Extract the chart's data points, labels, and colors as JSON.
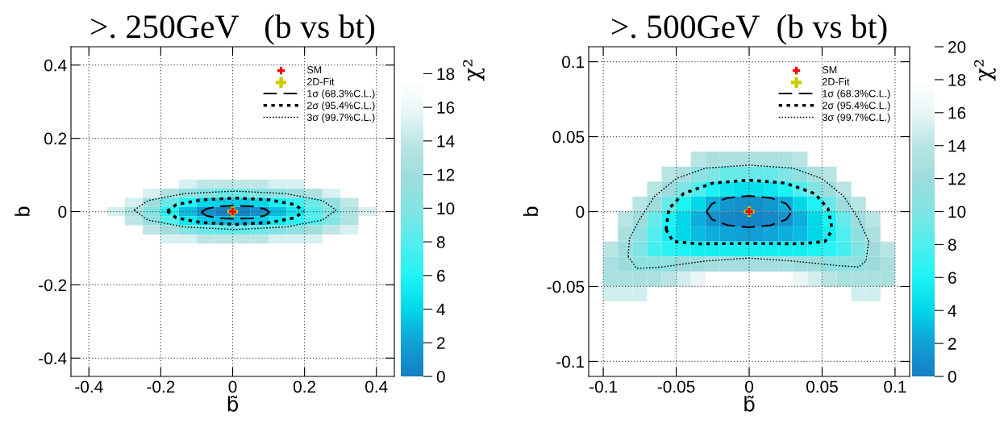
{
  "chart_data": [
    {
      "type": "heatmap",
      "title": ">. 250GeV   (b vs bt)",
      "xlabel": "b̃",
      "ylabel": "b",
      "clabel": "χ²",
      "xlim": [
        -0.45,
        0.45
      ],
      "ylim": [
        -0.45,
        0.45
      ],
      "xticks": [
        -0.4,
        -0.2,
        0,
        0.2,
        0.4
      ],
      "yticks": [
        -0.4,
        -0.2,
        0,
        0.2,
        0.4
      ],
      "clim": [
        0,
        19.6
      ],
      "cticks": [
        0,
        2,
        4,
        6,
        8,
        10,
        12,
        14,
        16,
        18
      ],
      "colors": [
        "#1580c4",
        "#10a0d6",
        "#00d8ea",
        "#1ef4f4",
        "#50eeee",
        "#80e4e4",
        "#9edcdc",
        "#b8e4e4",
        "#e8f6f6",
        "#ffffff",
        "#ffffff"
      ],
      "grid": true,
      "legend": "top right",
      "x": [
        -0.375,
        -0.325,
        -0.275,
        -0.225,
        -0.175,
        -0.125,
        -0.075,
        -0.025,
        0.025,
        0.075,
        0.125,
        0.175,
        0.225,
        0.275,
        0.325,
        0.375
      ],
      "y": [
        0.075,
        0.05,
        0.025,
        0,
        -0.025,
        -0.05,
        -0.075
      ],
      "cells": [
        [
          null,
          null,
          null,
          null,
          null,
          15,
          14,
          14,
          14,
          14,
          15,
          15,
          null,
          null,
          null,
          null
        ],
        [
          null,
          null,
          null,
          15,
          13,
          11,
          10,
          9,
          9,
          10,
          11,
          12,
          13,
          15,
          null,
          null
        ],
        [
          null,
          null,
          15,
          12,
          9,
          6,
          4,
          3.5,
          3.5,
          4,
          5.5,
          7,
          9,
          11,
          14,
          null
        ],
        [
          null,
          15,
          13,
          10,
          6,
          3,
          1.2,
          0.3,
          0.3,
          1.2,
          3,
          5,
          8,
          10,
          13,
          15
        ],
        [
          null,
          null,
          14,
          11,
          8,
          5,
          3.5,
          3,
          3,
          3.5,
          5,
          6.5,
          8,
          10,
          13,
          null
        ],
        [
          null,
          null,
          null,
          14,
          12,
          10,
          9,
          8.5,
          8.5,
          9,
          10,
          11,
          12,
          14,
          15,
          null
        ],
        [
          null,
          null,
          null,
          null,
          15,
          15,
          14,
          14,
          14,
          14,
          15,
          15,
          15,
          null,
          null,
          null
        ]
      ],
      "series": [
        {
          "name": "SM",
          "type": "scatter",
          "color": "#ff0000",
          "marker": "cross",
          "x": [
            0
          ],
          "values": [
            0
          ]
        },
        {
          "name": "2D-Fit",
          "type": "scatter",
          "color": "#cccc00",
          "marker": "cross",
          "x": [
            0
          ],
          "values": [
            0
          ]
        },
        {
          "name": "1σ (68.3%C.L.)",
          "type": "line",
          "color": "#000000",
          "line_style": "dashed",
          "x": [
            -0.087,
            -0.074,
            -0.04,
            0.008,
            0.056,
            0.09,
            0.103
          ],
          "values": [
            -0.002,
            0.007,
            0.014,
            0.016,
            0.014,
            0.007,
            -0.002
          ]
        },
        {
          "type": "line",
          "color": "#000000",
          "line_style": "dashed",
          "x": [
            -0.087,
            -0.074,
            -0.04,
            0.008,
            0.056,
            0.09,
            0.103
          ],
          "values": [
            -0.002,
            -0.011,
            -0.018,
            -0.02,
            -0.018,
            -0.011,
            -0.002
          ]
        },
        {
          "name": "2σ (95.4%C.L.)",
          "type": "line",
          "color": "#000000",
          "line_style": "dotted",
          "x": [
            -0.182,
            -0.157,
            -0.087,
            0.008,
            0.103,
            0.173,
            0.198
          ],
          "values": [
            0.001,
            0.019,
            0.032,
            0.037,
            0.032,
            0.019,
            0.001
          ]
        },
        {
          "type": "line",
          "color": "#000000",
          "line_style": "dotted",
          "x": [
            -0.182,
            -0.157,
            -0.087,
            0.008,
            0.103,
            0.173,
            0.198
          ],
          "values": [
            0.001,
            -0.017,
            -0.03,
            -0.035,
            -0.03,
            -0.017,
            0.001
          ]
        },
        {
          "name": "3σ (99.7%C.L.)",
          "type": "line",
          "color": "#000000",
          "line_style": "dotted",
          "x": [
            -0.274,
            -0.236,
            -0.134,
            0.007,
            0.148,
            0.25,
            0.288
          ],
          "values": [
            0.004,
            0.03,
            0.049,
            0.056,
            0.049,
            0.03,
            0.004
          ]
        },
        {
          "type": "line",
          "color": "#000000",
          "line_style": "dotted",
          "x": [
            -0.274,
            -0.236,
            -0.134,
            0.007,
            0.148,
            0.25,
            0.288
          ],
          "values": [
            0.004,
            -0.023,
            -0.042,
            -0.049,
            -0.042,
            -0.023,
            0.004
          ]
        }
      ]
    },
    {
      "type": "heatmap",
      "title": ">. 500GeV  (b vs bt)",
      "xlabel": "b̃",
      "ylabel": "b",
      "clabel": "χ²",
      "xlim": [
        -0.11,
        0.11
      ],
      "ylim": [
        -0.11,
        0.11
      ],
      "xticks": [
        -0.1,
        -0.05,
        0,
        0.05,
        0.1
      ],
      "yticks": [
        -0.1,
        -0.05,
        0,
        0.05,
        0.1
      ],
      "clim": [
        0,
        20
      ],
      "cticks": [
        0,
        2,
        4,
        6,
        8,
        10,
        12,
        14,
        16,
        18,
        20
      ],
      "colors": [
        "#1580c4",
        "#10a0d6",
        "#00d8ea",
        "#1ef4f4",
        "#50eeee",
        "#80e4e4",
        "#9edcdc",
        "#b8e4e4",
        "#e8f6f6",
        "#ffffff",
        "#ffffff"
      ],
      "grid": true,
      "legend": "top right",
      "x": [
        -0.095,
        -0.085,
        -0.075,
        -0.065,
        -0.055,
        -0.045,
        -0.035,
        -0.025,
        -0.015,
        -0.005,
        0.005,
        0.015,
        0.025,
        0.035,
        0.045,
        0.055,
        0.065,
        0.075,
        0.085,
        0.095
      ],
      "y": [
        0.035,
        0.025,
        0.015,
        0.005,
        -0.005,
        -0.015,
        -0.025,
        -0.035,
        -0.045,
        -0.055
      ],
      "cells": [
        [
          null,
          null,
          null,
          null,
          null,
          null,
          14,
          13,
          13,
          13,
          13,
          13,
          13,
          14,
          null,
          null,
          null,
          null,
          null,
          null
        ],
        [
          null,
          null,
          null,
          null,
          14,
          13,
          11,
          10,
          9,
          9,
          9,
          9,
          10,
          11,
          13,
          14,
          null,
          null,
          null,
          null
        ],
        [
          null,
          null,
          null,
          14,
          12,
          10,
          8,
          6,
          5,
          4.5,
          4.5,
          5,
          6,
          8,
          10,
          12,
          14,
          null,
          null,
          null
        ],
        [
          null,
          null,
          14,
          12,
          9,
          6,
          4,
          2.5,
          1.5,
          1,
          1,
          1.5,
          2.5,
          4,
          6,
          9,
          12,
          14,
          null,
          null
        ],
        [
          null,
          14,
          12,
          9,
          6,
          4,
          2.5,
          1.2,
          0.6,
          0.4,
          0.4,
          0.6,
          1.2,
          2.5,
          4,
          6,
          9,
          12,
          14,
          null
        ],
        [
          null,
          13,
          11,
          8,
          5.5,
          4,
          3,
          2.5,
          2.2,
          2,
          2,
          2.2,
          2.5,
          3,
          4,
          5.5,
          8,
          11,
          13,
          null
        ],
        [
          14,
          12,
          10,
          7.5,
          6.5,
          6,
          5.5,
          5.5,
          5.5,
          5.5,
          5.5,
          5.5,
          5.5,
          5.5,
          6,
          6.5,
          7.5,
          10,
          12,
          14
        ],
        [
          13,
          12,
          11,
          11,
          11,
          12,
          12,
          12.5,
          12.5,
          12.5,
          12.5,
          12.5,
          12.5,
          12,
          12,
          11,
          11,
          11,
          12,
          13
        ],
        [
          13,
          13,
          13,
          13,
          14,
          15,
          16,
          null,
          null,
          null,
          null,
          null,
          null,
          16,
          15,
          14,
          13,
          13,
          13,
          13
        ],
        [
          15,
          15,
          15,
          null,
          null,
          null,
          null,
          null,
          null,
          null,
          null,
          null,
          null,
          null,
          null,
          null,
          null,
          15,
          15,
          null
        ]
      ],
      "series": [
        {
          "name": "SM",
          "type": "scatter",
          "color": "#ff0000",
          "marker": "cross",
          "x": [
            0
          ],
          "values": [
            0
          ]
        },
        {
          "name": "2D-Fit",
          "type": "scatter",
          "color": "#cccc00",
          "marker": "cross",
          "x": [
            0
          ],
          "values": [
            0
          ]
        },
        {
          "name": "1σ (68.3%C.L.)",
          "type": "line",
          "color": "#000000",
          "line_style": "dashed",
          "x": [
            -0.0293,
            -0.0254,
            -0.0147,
            0,
            0.0147,
            0.0254,
            0.0293
          ],
          "values": [
            0,
            0.0053,
            0.0091,
            0.0105,
            0.0091,
            0.0053,
            0
          ]
        },
        {
          "type": "line",
          "color": "#000000",
          "line_style": "dashed",
          "x": [
            -0.0293,
            -0.0254,
            -0.0147,
            0,
            0.0147,
            0.0254,
            0.0293
          ],
          "values": [
            0,
            -0.0053,
            -0.0091,
            -0.0105,
            -0.0091,
            -0.0053,
            0
          ]
        },
        {
          "name": "2σ (95.4%C.L.)",
          "type": "line",
          "color": "#000000",
          "line_style": "dotted",
          "x": [
            -0.057,
            -0.055,
            -0.045,
            -0.025,
            0,
            0.025,
            0.045,
            0.054,
            0.057
          ],
          "values": [
            -0.012,
            0.002,
            0.012,
            0.019,
            0.021,
            0.019,
            0.012,
            0.002,
            -0.012
          ]
        },
        {
          "type": "line",
          "color": "#000000",
          "line_style": "dotted",
          "x": [
            -0.057,
            -0.052,
            -0.035,
            0,
            0.035,
            0.052,
            0.057
          ],
          "values": [
            -0.012,
            -0.02,
            -0.0215,
            -0.0213,
            -0.0215,
            -0.02,
            -0.012
          ]
        },
        {
          "name": "3σ (99.7%C.L.)",
          "type": "line",
          "color": "#000000",
          "line_style": "dotted",
          "x": [
            -0.083,
            -0.082,
            -0.075,
            -0.065,
            -0.05,
            -0.03,
            0,
            0.03,
            0.05,
            0.065,
            0.075,
            0.082
          ],
          "values": [
            -0.03,
            -0.018,
            -0.005,
            0.01,
            0.022,
            0.029,
            0.031,
            0.029,
            0.022,
            0.01,
            -0.005,
            -0.02
          ]
        },
        {
          "type": "line",
          "color": "#000000",
          "line_style": "dotted",
          "x": [
            -0.083,
            -0.077,
            -0.06,
            -0.03,
            0,
            0.03,
            0.06,
            0.075,
            0.08,
            0.082
          ],
          "values": [
            -0.03,
            -0.038,
            -0.037,
            -0.033,
            -0.031,
            -0.033,
            -0.036,
            -0.037,
            -0.033,
            -0.02
          ]
        }
      ]
    }
  ]
}
